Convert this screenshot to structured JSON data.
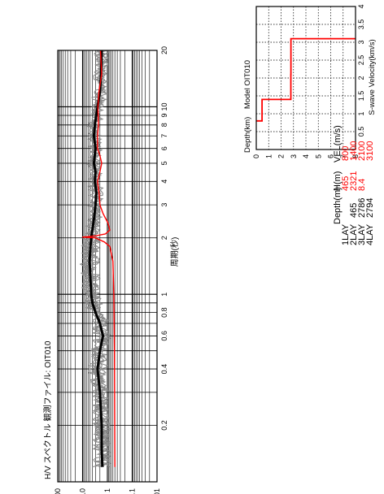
{
  "left_chart": {
    "title": "H/V スペクトル 観測ファイル: OIT010",
    "x_label": "周期(秒)",
    "x_ticks": [
      "0.2",
      "0.4",
      "0.6",
      "0.8",
      "1",
      "2",
      "3",
      "4",
      "5",
      "6",
      "7",
      "8",
      "9",
      "10",
      "20"
    ],
    "y_ticks": [
      "0.01",
      "0.1",
      "1",
      "10",
      "100"
    ]
  },
  "right_chart": {
    "title": "Depth(km)　Model OIT010",
    "x_label": "S-wave Velocity(km/s)",
    "x_ticks": [
      "0.5",
      "1",
      "1.5",
      "2",
      "2.5",
      "3",
      "3.5",
      "4"
    ],
    "y_ticks": [
      "0",
      "1",
      "2",
      "3",
      "4",
      "5",
      "6",
      "7",
      "8"
    ]
  },
  "layer_table": {
    "headers": [
      "Depth(m)",
      "H(m)",
      "VEL(m/s)"
    ],
    "rows": [
      {
        "name": "1LAY",
        "depth": "",
        "h": "465",
        "vel": "800"
      },
      {
        "name": "2LAY",
        "depth": "465",
        "h": "2321",
        "vel": "1400"
      },
      {
        "name": "3LAY",
        "depth": "2786",
        "h": "8.4",
        "vel": "2100"
      },
      {
        "name": "4LAY",
        "depth": "2794",
        "h": "",
        "vel": "3100"
      }
    ]
  },
  "chart_data": [
    {
      "type": "line",
      "title": "H/V スペクトル 観測ファイル: OIT010",
      "xlabel": "周期(秒)",
      "ylabel": "",
      "xscale": "log",
      "yscale": "log",
      "xlim": [
        0.1,
        20
      ],
      "ylim": [
        0.01,
        100
      ],
      "grid": true,
      "series": [
        {
          "name": "",
          "color": "#000000",
          "x": [
            0.12,
            0.15,
            0.2,
            0.3,
            0.4,
            0.5,
            0.6,
            0.7,
            0.8,
            0.9,
            1.0,
            1.2,
            1.5,
            1.8,
            2.0,
            2.5,
            3.0,
            3.5,
            4.0,
            4.5,
            5.0,
            6.0,
            7.0,
            8.0,
            10.0,
            12.0,
            15.0,
            20.0
          ],
          "y": [
            1.6,
            1.7,
            1.7,
            2.0,
            2.5,
            2.0,
            1.5,
            2.0,
            3.0,
            4.0,
            4.5,
            4.8,
            5.2,
            4.8,
            4.5,
            3.5,
            3.0,
            2.8,
            3.2,
            3.0,
            3.5,
            3.0,
            3.5,
            3.2,
            2.5,
            2.0,
            1.8,
            1.7
          ]
        },
        {
          "name": "",
          "color": "#ff0000",
          "x": [
            0.12,
            0.5,
            1.0,
            1.5,
            1.8,
            1.9,
            2.0,
            2.02,
            2.05,
            2.1,
            2.2,
            2.4,
            2.7,
            3.0,
            3.5,
            4.0,
            4.5,
            5.0,
            5.5,
            6.0,
            7.0,
            8.0,
            10.0,
            12.0,
            15.0,
            20.0
          ],
          "y": [
            0.5,
            0.52,
            0.55,
            0.6,
            0.8,
            1.3,
            3.0,
            10.0,
            3.0,
            1.2,
            0.8,
            0.95,
            1.5,
            2.0,
            2.2,
            2.5,
            2.0,
            1.7,
            2.0,
            2.5,
            2.5,
            2.3,
            2.4,
            2.2,
            1.7,
            1.9
          ]
        }
      ]
    },
    {
      "type": "line",
      "title": "Model OIT010",
      "xlabel": "S-wave Velocity(km/s)",
      "ylabel": "Depth(km)",
      "xlim": [
        0,
        4
      ],
      "ylim": [
        0,
        8
      ],
      "grid": true,
      "series": [
        {
          "name": "",
          "color": "#ff0000",
          "x": [
            0.8,
            0.8,
            1.4,
            1.4,
            2.1,
            2.1,
            3.1,
            3.1
          ],
          "y": [
            0,
            0.465,
            0.465,
            2.786,
            2.786,
            2.794,
            2.794,
            8
          ]
        }
      ]
    }
  ]
}
